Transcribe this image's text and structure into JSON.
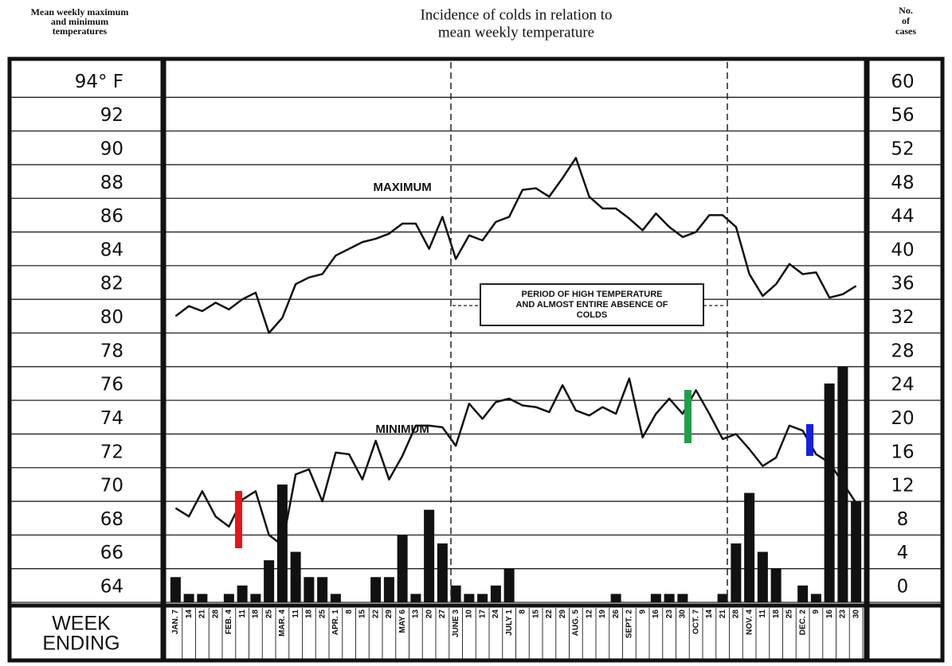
{
  "chart_data": {
    "type": "combo",
    "title": [
      "Incidence of colds in relation to",
      "mean weekly temperature"
    ],
    "y_label": [
      "Mean weekly maximum",
      "and minimum",
      "temperatures"
    ],
    "y2_label": [
      "No.",
      "of",
      "cases"
    ],
    "x_label": [
      "WEEK",
      "ENDING"
    ],
    "categories": [
      "JAN. 7",
      "14",
      "21",
      "28",
      "FEB. 4",
      "11",
      "18",
      "25",
      "MAR. 4",
      "11",
      "18",
      "25",
      "APR. 1",
      "8",
      "15",
      "22",
      "29",
      "MAY 6",
      "13",
      "20",
      "27",
      "JUNE 3",
      "10",
      "17",
      "24",
      "JULY 1",
      "8",
      "15",
      "22",
      "29",
      "AUG. 5",
      "12",
      "19",
      "26",
      "SEPT. 2",
      "9",
      "16",
      "23",
      "30",
      "OCT. 7",
      "14",
      "21",
      "28",
      "NOV. 4",
      "11",
      "18",
      "25",
      "DEC. 2",
      "9",
      "16",
      "23",
      "30"
    ],
    "series": [
      {
        "name": "MAXIMUM",
        "type": "line",
        "color": "#111111",
        "values": [
          81.0,
          81.6,
          81.3,
          81.8,
          81.4,
          82.0,
          82.4,
          80.0,
          80.9,
          82.9,
          83.3,
          83.5,
          84.6,
          85.0,
          85.4,
          85.6,
          85.9,
          86.5,
          86.5,
          85.0,
          86.9,
          84.4,
          85.8,
          85.5,
          86.6,
          86.9,
          88.5,
          88.6,
          88.1,
          89.2,
          90.4,
          88.1,
          87.4,
          87.4,
          86.8,
          86.1,
          87.1,
          86.3,
          85.7,
          86.0,
          87.0,
          87.0,
          86.3,
          83.5,
          82.2,
          82.9,
          84.1,
          83.5,
          83.6,
          82.1,
          82.3,
          82.8
        ]
      },
      {
        "name": "MINIMUM",
        "type": "line",
        "color": "#111111",
        "values": [
          69.6,
          69.1,
          70.6,
          69.1,
          68.5,
          70.1,
          70.6,
          68.0,
          67.4,
          71.6,
          71.9,
          70.0,
          72.9,
          72.8,
          71.3,
          73.6,
          71.3,
          72.7,
          74.5,
          74.5,
          74.4,
          73.3,
          75.8,
          74.9,
          75.9,
          76.1,
          75.7,
          75.6,
          75.3,
          76.9,
          75.4,
          75.1,
          75.6,
          75.2,
          77.3,
          73.8,
          75.2,
          76.1,
          75.2,
          76.6,
          75.2,
          73.7,
          74.0,
          73.1,
          72.1,
          72.6,
          74.5,
          74.2,
          72.8,
          72.3,
          71.1,
          69.9
        ]
      },
      {
        "type": "bar",
        "axis": "y2",
        "color": "#111111",
        "values": [
          3,
          1,
          1,
          0,
          1,
          2,
          1,
          5,
          14,
          6,
          3,
          3,
          1,
          0,
          0,
          3,
          3,
          8,
          1,
          11,
          7,
          2,
          1,
          1,
          2,
          4,
          0,
          0,
          0,
          0,
          0,
          0,
          0,
          1,
          0,
          0,
          1,
          1,
          1,
          0,
          0,
          1,
          7,
          13,
          6,
          4,
          0,
          2,
          1,
          26,
          28,
          12
        ]
      }
    ],
    "ylim": [
      64,
      96
    ],
    "yticks": [
      64,
      66,
      68,
      70,
      72,
      74,
      76,
      78,
      80,
      82,
      84,
      86,
      88,
      90,
      92,
      {
        "value": 94,
        "label": "94° F"
      }
    ],
    "y2lim": [
      0,
      64
    ],
    "y2ticks": [
      0,
      4,
      8,
      12,
      16,
      20,
      24,
      28,
      32,
      36,
      40,
      44,
      48,
      52,
      56,
      60
    ],
    "grid": true,
    "annotation": [
      "PERIOD OF HIGH TEMPERATURE",
      "AND ALMOST ENTIRE ABSENCE OF",
      "COLDS"
    ]
  }
}
